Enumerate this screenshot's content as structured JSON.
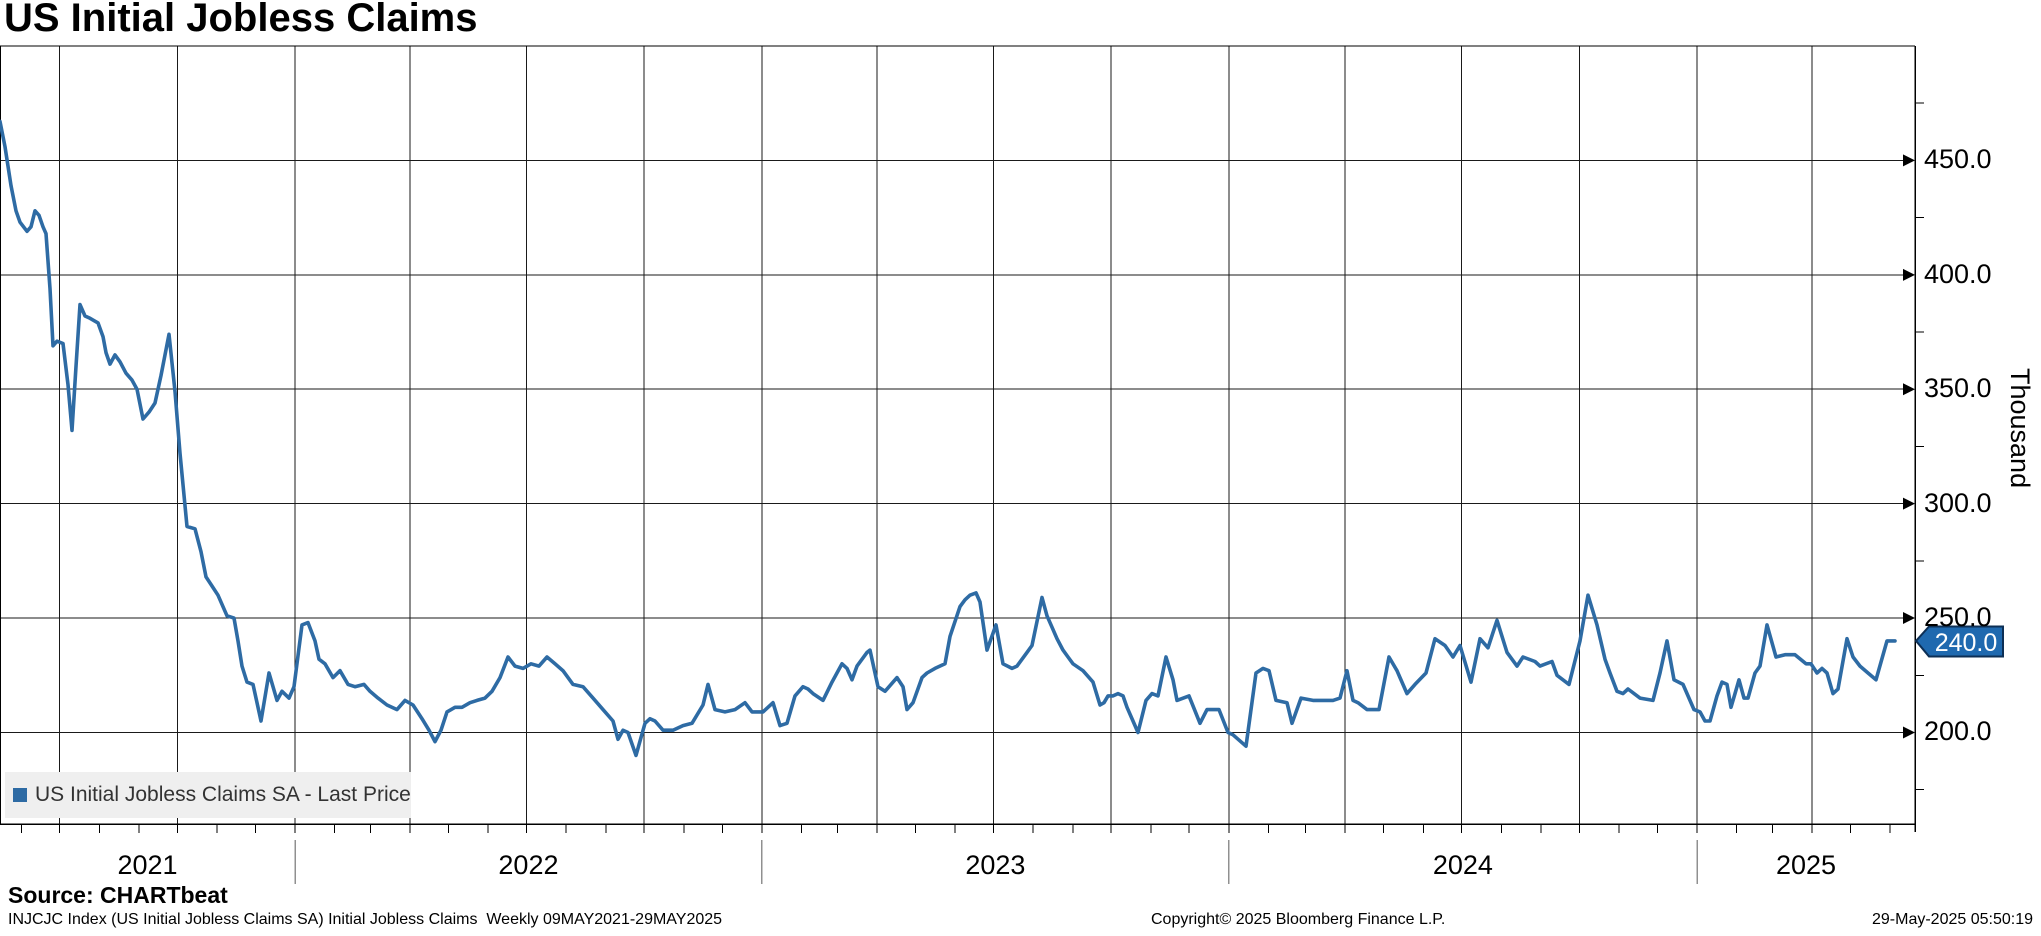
{
  "title": "US Initial Jobless Claims",
  "source_line": "Source: CHARTbeat",
  "footer": {
    "left": "INJCJC Index (US Initial Jobless Claims SA) Initial Jobless Claims  Weekly 09MAY2021-29MAY2025",
    "center": "Copyright© 2025 Bloomberg Finance L.P.",
    "right": "29-May-2025 05:50:19"
  },
  "legend": {
    "label": "US Initial Jobless Claims SA - Last Price",
    "swatch_color": "#2e6ba4"
  },
  "last_price_badge": {
    "value": "240.0",
    "fill": "#1f69af",
    "border": "#0d2f55",
    "text_color": "#ffffff"
  },
  "y_axis": {
    "title": "Thousand",
    "major_tick_labels": [
      "450.0",
      "400.0",
      "350.0",
      "300.0",
      "250.0",
      "200.0"
    ],
    "major_ticks": [
      450,
      400,
      350,
      300,
      250,
      200
    ],
    "minor_ticks": [
      475,
      425,
      375,
      325,
      275,
      225,
      175
    ]
  },
  "x_axis": {
    "year_labels": [
      "2021",
      "2022",
      "2023",
      "2024",
      "2025"
    ],
    "start_date": "09MAY2021",
    "end_date": "29MAY2025"
  },
  "chart_data": {
    "type": "line",
    "title": "US Initial Jobless Claims",
    "xlabel": "",
    "ylabel": "Thousand",
    "ylim": [
      160,
      500
    ],
    "x_range": "09MAY2021 to 29MAY2025, weekly",
    "grid": "on",
    "legend_position": "bottom-left",
    "y_ticks": [
      200,
      250,
      300,
      350,
      400,
      450
    ],
    "last_value": 240.0,
    "series": [
      {
        "name": "US Initial Jobless Claims SA - Last Price",
        "color": "#2e6ba4",
        "points_format": "[x_px (0=09MAY2021 .. 1915=right edge), claims_thousands]",
        "points": [
          [
            0,
            467
          ],
          [
            5,
            456
          ],
          [
            11,
            439
          ],
          [
            16,
            428
          ],
          [
            20,
            423
          ],
          [
            27,
            419
          ],
          [
            31,
            421
          ],
          [
            35,
            428
          ],
          [
            39,
            426
          ],
          [
            43,
            421
          ],
          [
            46,
            418
          ],
          [
            50,
            394
          ],
          [
            53,
            369
          ],
          [
            57,
            371
          ],
          [
            63,
            370
          ],
          [
            68,
            352
          ],
          [
            72,
            332
          ],
          [
            76,
            360
          ],
          [
            80,
            387
          ],
          [
            85,
            382
          ],
          [
            90,
            381
          ],
          [
            98,
            379
          ],
          [
            103,
            373
          ],
          [
            106,
            366
          ],
          [
            110,
            361
          ],
          [
            115,
            365
          ],
          [
            120,
            362
          ],
          [
            126,
            357
          ],
          [
            132,
            354
          ],
          [
            137,
            350
          ],
          [
            143,
            337
          ],
          [
            149,
            340
          ],
          [
            155,
            344
          ],
          [
            161,
            356
          ],
          [
            169,
            374
          ],
          [
            175,
            349
          ],
          [
            180,
            322
          ],
          [
            187,
            290
          ],
          [
            195,
            289
          ],
          [
            201,
            279
          ],
          [
            206,
            268
          ],
          [
            212,
            264
          ],
          [
            218,
            260
          ],
          [
            227,
            251
          ],
          [
            234,
            250
          ],
          [
            238,
            240
          ],
          [
            242,
            229
          ],
          [
            247,
            222
          ],
          [
            253,
            221
          ],
          [
            261,
            205
          ],
          [
            269,
            226
          ],
          [
            277,
            214
          ],
          [
            282,
            218
          ],
          [
            289,
            215
          ],
          [
            294,
            220
          ],
          [
            302,
            247
          ],
          [
            308,
            248
          ],
          [
            315,
            240
          ],
          [
            319,
            232
          ],
          [
            325,
            230
          ],
          [
            333,
            224
          ],
          [
            340,
            227
          ],
          [
            348,
            221
          ],
          [
            355,
            220
          ],
          [
            364,
            221
          ],
          [
            370,
            218
          ],
          [
            378,
            215
          ],
          [
            387,
            212
          ],
          [
            397,
            210
          ],
          [
            405,
            214
          ],
          [
            413,
            212
          ],
          [
            422,
            206
          ],
          [
            429,
            201
          ],
          [
            435,
            196
          ],
          [
            441,
            201
          ],
          [
            447,
            209
          ],
          [
            455,
            211
          ],
          [
            462,
            211
          ],
          [
            470,
            213
          ],
          [
            477,
            214
          ],
          [
            485,
            215
          ],
          [
            492,
            218
          ],
          [
            500,
            224
          ],
          [
            508,
            233
          ],
          [
            515,
            229
          ],
          [
            523,
            228
          ],
          [
            531,
            230
          ],
          [
            539,
            229
          ],
          [
            547,
            233
          ],
          [
            555,
            230
          ],
          [
            563,
            227
          ],
          [
            573,
            221
          ],
          [
            583,
            220
          ],
          [
            593,
            215
          ],
          [
            603,
            210
          ],
          [
            613,
            205
          ],
          [
            618,
            197
          ],
          [
            623,
            201
          ],
          [
            628,
            200
          ],
          [
            636,
            190
          ],
          [
            645,
            204
          ],
          [
            650,
            206
          ],
          [
            655,
            205
          ],
          [
            663,
            201
          ],
          [
            673,
            201
          ],
          [
            683,
            203
          ],
          [
            692,
            204
          ],
          [
            703,
            212
          ],
          [
            708,
            221
          ],
          [
            715,
            210
          ],
          [
            725,
            209
          ],
          [
            735,
            210
          ],
          [
            745,
            213
          ],
          [
            752,
            209
          ],
          [
            763,
            209
          ],
          [
            773,
            213
          ],
          [
            780,
            203
          ],
          [
            787,
            204
          ],
          [
            795,
            216
          ],
          [
            803,
            220
          ],
          [
            808,
            219
          ],
          [
            813,
            217
          ],
          [
            823,
            214
          ],
          [
            832,
            222
          ],
          [
            842,
            230
          ],
          [
            847,
            228
          ],
          [
            852,
            223
          ],
          [
            857,
            229
          ],
          [
            867,
            235
          ],
          [
            870,
            236
          ],
          [
            878,
            220
          ],
          [
            885,
            218
          ],
          [
            897,
            224
          ],
          [
            903,
            220
          ],
          [
            907,
            210
          ],
          [
            913,
            213
          ],
          [
            922,
            224
          ],
          [
            927,
            226
          ],
          [
            935,
            228
          ],
          [
            945,
            230
          ],
          [
            950,
            242
          ],
          [
            960,
            255
          ],
          [
            965,
            258
          ],
          [
            970,
            260
          ],
          [
            976,
            261
          ],
          [
            980,
            257
          ],
          [
            987,
            236
          ],
          [
            996,
            247
          ],
          [
            1003,
            230
          ],
          [
            1012,
            228
          ],
          [
            1017,
            229
          ],
          [
            1027,
            235
          ],
          [
            1032,
            238
          ],
          [
            1042,
            259
          ],
          [
            1047,
            251
          ],
          [
            1052,
            246
          ],
          [
            1057,
            241
          ],
          [
            1063,
            236
          ],
          [
            1068,
            233
          ],
          [
            1073,
            230
          ],
          [
            1083,
            227
          ],
          [
            1093,
            222
          ],
          [
            1100,
            212
          ],
          [
            1104,
            213
          ],
          [
            1108,
            216
          ],
          [
            1113,
            216
          ],
          [
            1118,
            217
          ],
          [
            1123,
            216
          ],
          [
            1127,
            211
          ],
          [
            1133,
            205
          ],
          [
            1138,
            200
          ],
          [
            1146,
            214
          ],
          [
            1152,
            217
          ],
          [
            1158,
            216
          ],
          [
            1166,
            233
          ],
          [
            1173,
            223
          ],
          [
            1177,
            214
          ],
          [
            1189,
            216
          ],
          [
            1200,
            204
          ],
          [
            1207,
            210
          ],
          [
            1219,
            210
          ],
          [
            1228,
            200
          ],
          [
            1233,
            199
          ],
          [
            1246,
            194
          ],
          [
            1256,
            226
          ],
          [
            1263,
            228
          ],
          [
            1269,
            227
          ],
          [
            1276,
            214
          ],
          [
            1287,
            213
          ],
          [
            1292,
            204
          ],
          [
            1301,
            215
          ],
          [
            1313,
            214
          ],
          [
            1333,
            214
          ],
          [
            1340,
            215
          ],
          [
            1347,
            227
          ],
          [
            1353,
            214
          ],
          [
            1358,
            213
          ],
          [
            1367,
            210
          ],
          [
            1379,
            210
          ],
          [
            1389,
            233
          ],
          [
            1397,
            227
          ],
          [
            1407,
            217
          ],
          [
            1415,
            221
          ],
          [
            1426,
            226
          ],
          [
            1435,
            241
          ],
          [
            1445,
            238
          ],
          [
            1453,
            233
          ],
          [
            1460,
            238
          ],
          [
            1471,
            222
          ],
          [
            1480,
            241
          ],
          [
            1488,
            237
          ],
          [
            1497,
            249
          ],
          [
            1507,
            235
          ],
          [
            1517,
            229
          ],
          [
            1523,
            233
          ],
          [
            1535,
            231
          ],
          [
            1540,
            229
          ],
          [
            1552,
            231
          ],
          [
            1557,
            225
          ],
          [
            1569,
            221
          ],
          [
            1580,
            240
          ],
          [
            1588,
            260
          ],
          [
            1597,
            247
          ],
          [
            1605,
            232
          ],
          [
            1610,
            226
          ],
          [
            1617,
            218
          ],
          [
            1623,
            217
          ],
          [
            1628,
            219
          ],
          [
            1640,
            215
          ],
          [
            1653,
            214
          ],
          [
            1660,
            226
          ],
          [
            1667,
            240
          ],
          [
            1674,
            223
          ],
          [
            1683,
            221
          ],
          [
            1694,
            210
          ],
          [
            1700,
            209
          ],
          [
            1705,
            205
          ],
          [
            1710,
            205
          ],
          [
            1717,
            216
          ],
          [
            1722,
            222
          ],
          [
            1727,
            221
          ],
          [
            1731,
            211
          ],
          [
            1735,
            217
          ],
          [
            1739,
            223
          ],
          [
            1744,
            215
          ],
          [
            1748,
            215
          ],
          [
            1755,
            226
          ],
          [
            1760,
            229
          ],
          [
            1767,
            247
          ],
          [
            1776,
            233
          ],
          [
            1785,
            234
          ],
          [
            1795,
            234
          ],
          [
            1806,
            230
          ],
          [
            1811,
            230
          ],
          [
            1817,
            226
          ],
          [
            1822,
            228
          ],
          [
            1827,
            226
          ],
          [
            1833,
            217
          ],
          [
            1838,
            219
          ],
          [
            1847,
            241
          ],
          [
            1853,
            233
          ],
          [
            1860,
            229
          ],
          [
            1868,
            226
          ],
          [
            1876,
            223
          ],
          [
            1887,
            240
          ],
          [
            1895,
            240
          ]
        ]
      }
    ]
  },
  "colors": {
    "grid": "#1a1a1a",
    "axis": "#000000",
    "year_divider": "#909090",
    "legend_bg": "#efefef"
  }
}
